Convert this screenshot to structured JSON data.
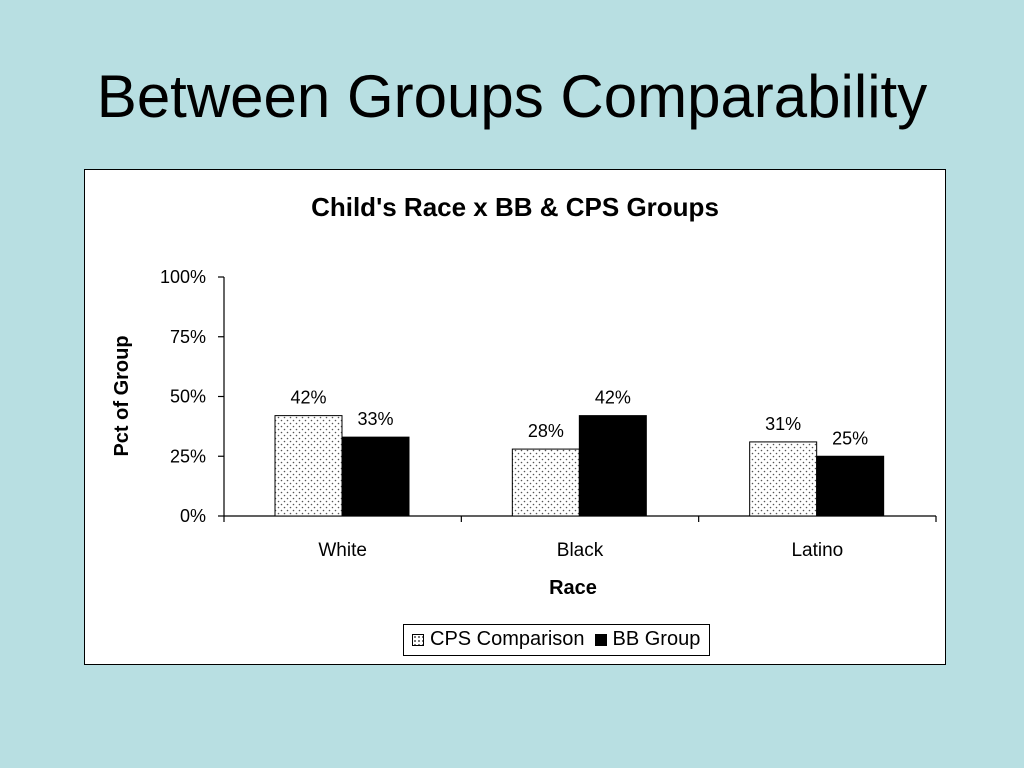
{
  "slide": {
    "title": "Between Groups Comparability"
  },
  "chart_data": {
    "type": "bar",
    "title": "Child's Race  x BB & CPS Groups",
    "xlabel": "Race",
    "ylabel": "Pct of Group",
    "categories": [
      "White",
      "Black",
      "Latino"
    ],
    "series": [
      {
        "name": "CPS Comparison",
        "values": [
          42,
          28,
          31
        ],
        "labels": [
          "42%",
          "28%",
          "31%"
        ],
        "fill": "dotted"
      },
      {
        "name": "BB Group",
        "values": [
          33,
          42,
          25
        ],
        "labels": [
          "33%",
          "42%",
          "25%"
        ],
        "fill": "#000000"
      }
    ],
    "ylim": [
      0,
      100
    ],
    "yticks": [
      0,
      25,
      50,
      75,
      100
    ],
    "ytick_labels": [
      "0%",
      "25%",
      "50%",
      "75%",
      "100%"
    ],
    "grid": false,
    "legend_position": "bottom-center"
  }
}
